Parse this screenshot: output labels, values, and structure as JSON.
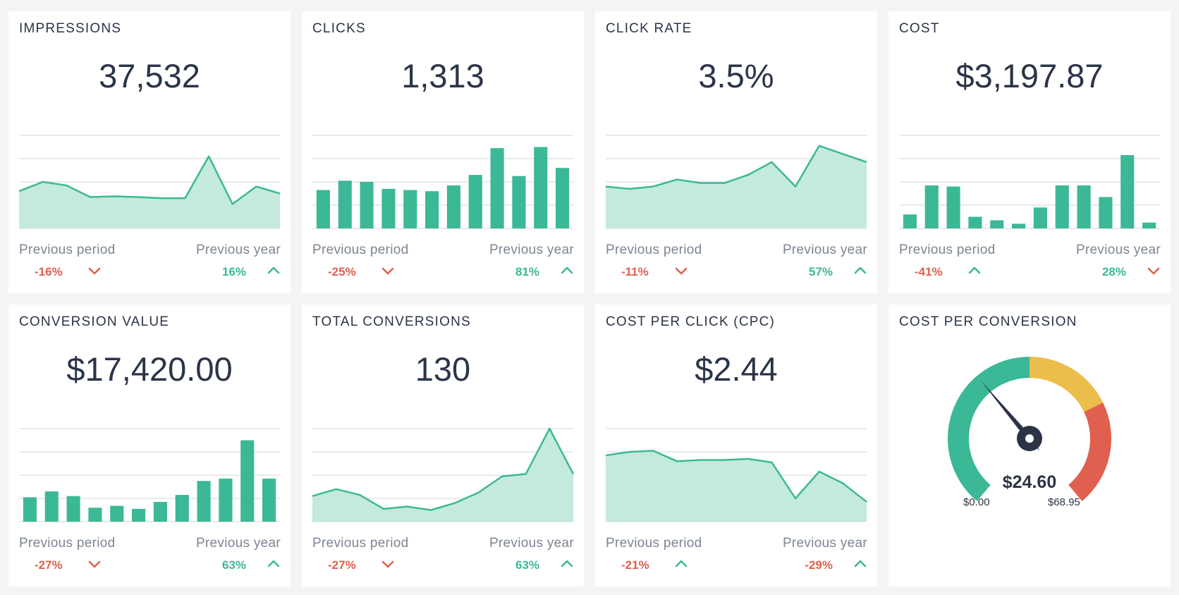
{
  "colors": {
    "accent": "#3bb896",
    "accent_fill": "#c3eadd",
    "negative": "#e05f4f",
    "gauge_yellow": "#ebbd4a",
    "gauge_red": "#e05f4f",
    "grid": "#e2e4e8",
    "needle": "#2b3447"
  },
  "comparison_labels": {
    "previous_period": "Previous period",
    "previous_year": "Previous year"
  },
  "cards": [
    {
      "title": "IMPRESSIONS",
      "value": "37,532",
      "prev_period": "-16%",
      "prev_year": "16%"
    },
    {
      "title": "CLICKS",
      "value": "1,313",
      "prev_period": "-25%",
      "prev_year": "81%"
    },
    {
      "title": "CLICK RATE",
      "value": "3.5%",
      "prev_period": "-11%",
      "prev_year": "57%"
    },
    {
      "title": "COST",
      "value": "$3,197.87",
      "prev_period": "-41%",
      "prev_year": "28%"
    },
    {
      "title": "CONVERSION VALUE",
      "value": "$17,420.00",
      "prev_period": "-27%",
      "prev_year": "63%"
    },
    {
      "title": "TOTAL CONVERSIONS",
      "value": "130",
      "prev_period": "-27%",
      "prev_year": "63%"
    },
    {
      "title": "COST PER CLICK (CPC)",
      "value": "$2.44",
      "prev_period": "-21%",
      "prev_year": "-29%"
    },
    {
      "title": "COST PER CONVERSION",
      "gauge_value": "$24.60",
      "gauge_min": "$0.00",
      "gauge_max": "$68.95"
    }
  ],
  "chart_data": [
    {
      "type": "area",
      "values": [
        1.6,
        2.0,
        1.85,
        1.35,
        1.38,
        1.35,
        1.3,
        1.3,
        3.1,
        1.05,
        1.8,
        1.5
      ],
      "ylim": [
        0,
        4
      ],
      "grid": true,
      "trend_previous_period": "down",
      "trend_previous_year": "up"
    },
    {
      "type": "bar",
      "values": [
        1.65,
        2.05,
        2.0,
        1.7,
        1.65,
        1.6,
        1.85,
        2.3,
        3.45,
        2.25,
        3.5,
        2.6
      ],
      "ylim": [
        0,
        4
      ],
      "grid": true,
      "trend_previous_period": "down",
      "trend_previous_year": "up"
    },
    {
      "type": "area",
      "values": [
        1.8,
        1.7,
        1.8,
        2.1,
        1.95,
        1.95,
        2.3,
        2.85,
        1.8,
        3.55,
        3.2,
        2.85
      ],
      "ylim": [
        0,
        4
      ],
      "grid": true,
      "trend_previous_period": "down",
      "trend_previous_year": "up"
    },
    {
      "type": "bar",
      "values": [
        0.6,
        1.85,
        1.8,
        0.5,
        0.35,
        0.2,
        0.9,
        1.85,
        1.85,
        1.35,
        3.15,
        0.25
      ],
      "ylim": [
        0,
        4
      ],
      "grid": true,
      "trend_previous_period": "up",
      "trend_previous_year": "down"
    },
    {
      "type": "bar",
      "values": [
        1.05,
        1.3,
        1.1,
        0.6,
        0.68,
        0.55,
        0.85,
        1.15,
        1.75,
        1.85,
        3.5,
        1.85
      ],
      "ylim": [
        0,
        4
      ],
      "grid": true,
      "trend_previous_period": "down",
      "trend_previous_year": "up"
    },
    {
      "type": "area",
      "values": [
        1.1,
        1.4,
        1.15,
        0.55,
        0.65,
        0.5,
        0.8,
        1.25,
        1.95,
        2.05,
        4.0,
        2.05
      ],
      "ylim": [
        0,
        4
      ],
      "grid": true,
      "trend_previous_period": "down",
      "trend_previous_year": "up"
    },
    {
      "type": "area",
      "values": [
        2.85,
        3.0,
        3.05,
        2.6,
        2.65,
        2.65,
        2.7,
        2.55,
        1.0,
        2.15,
        1.65,
        0.85
      ],
      "ylim": [
        0,
        4
      ],
      "grid": true,
      "trend_previous_period": "up",
      "trend_previous_year": "up"
    },
    {
      "type": "gauge",
      "value": 24.6,
      "min": 0,
      "max": 68.95
    }
  ]
}
